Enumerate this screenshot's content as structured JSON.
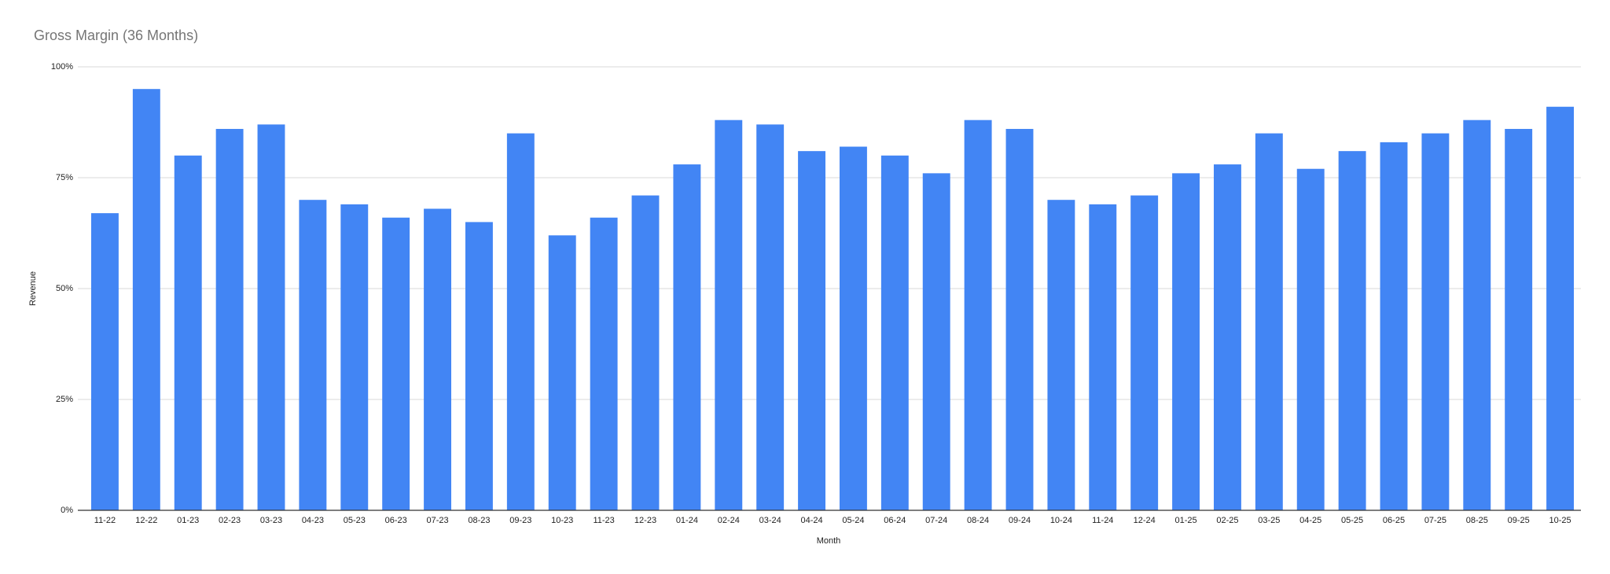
{
  "chart_data": {
    "type": "bar",
    "title": "Gross Margin (36 Months)",
    "x_label": "Month",
    "y_label": "Revenue",
    "categories": [
      "11-22",
      "12-22",
      "01-23",
      "02-23",
      "03-23",
      "04-23",
      "05-23",
      "06-23",
      "07-23",
      "08-23",
      "09-23",
      "10-23",
      "11-23",
      "12-23",
      "01-24",
      "02-24",
      "03-24",
      "04-24",
      "05-24",
      "06-24",
      "07-24",
      "08-24",
      "09-24",
      "10-24",
      "11-24",
      "12-24",
      "01-25",
      "02-25",
      "03-25",
      "04-25",
      "05-25",
      "06-25",
      "07-25",
      "08-25",
      "09-25",
      "10-25"
    ],
    "values": [
      67,
      95,
      80,
      86,
      87,
      70,
      69,
      66,
      68,
      65,
      85,
      62,
      66,
      71,
      78,
      88,
      87,
      81,
      82,
      80,
      76,
      88,
      86,
      70,
      69,
      71,
      76,
      78,
      85,
      77,
      81,
      83,
      85,
      88,
      86,
      91
    ],
    "color": "#4285f4",
    "ylim": [
      0,
      100
    ],
    "yticks": [
      {
        "value": 0,
        "label": "0%"
      },
      {
        "value": 25,
        "label": "25%"
      },
      {
        "value": 50,
        "label": "50%"
      },
      {
        "value": 75,
        "label": "75%"
      },
      {
        "value": 100,
        "label": "100%"
      }
    ],
    "grid": true
  }
}
